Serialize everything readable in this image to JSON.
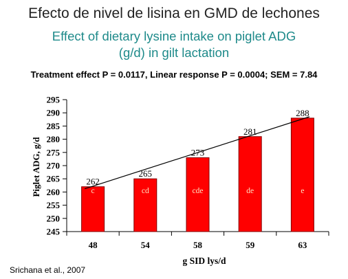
{
  "slide": {
    "title_es": "Efecto de nivel de lisina en GMD de lechones",
    "title_en_line1": "Effect of dietary lysine intake on piglet ADG",
    "title_en_line2": "(g/d) in gilt lactation",
    "stats_line": "Treatment effect P = 0.0117, Linear response P = 0.0004; SEM = 7.84",
    "source": "Srichana et al., 2007"
  },
  "chart_data": {
    "type": "bar",
    "categories": [
      "48",
      "54",
      "58",
      "59",
      "63"
    ],
    "values": [
      262,
      265,
      273,
      281,
      288
    ],
    "value_labels": [
      "262",
      "265",
      "273",
      "281",
      "288"
    ],
    "letters": [
      "c",
      "cd",
      "cde",
      "de",
      "e"
    ],
    "xlabel": "g SID lys/d",
    "ylabel": "Piglet ADG, g/d",
    "ylim": [
      245,
      295
    ],
    "yticks": [
      245,
      250,
      255,
      260,
      265,
      270,
      275,
      280,
      285,
      290,
      295
    ],
    "trendline": {
      "from": 262,
      "to": 288
    },
    "grid": false,
    "colors": {
      "bar": "#ff0000",
      "bar_edge": "#800000",
      "letter": "#ffe0c0",
      "teal": "#1e8a8a"
    }
  }
}
